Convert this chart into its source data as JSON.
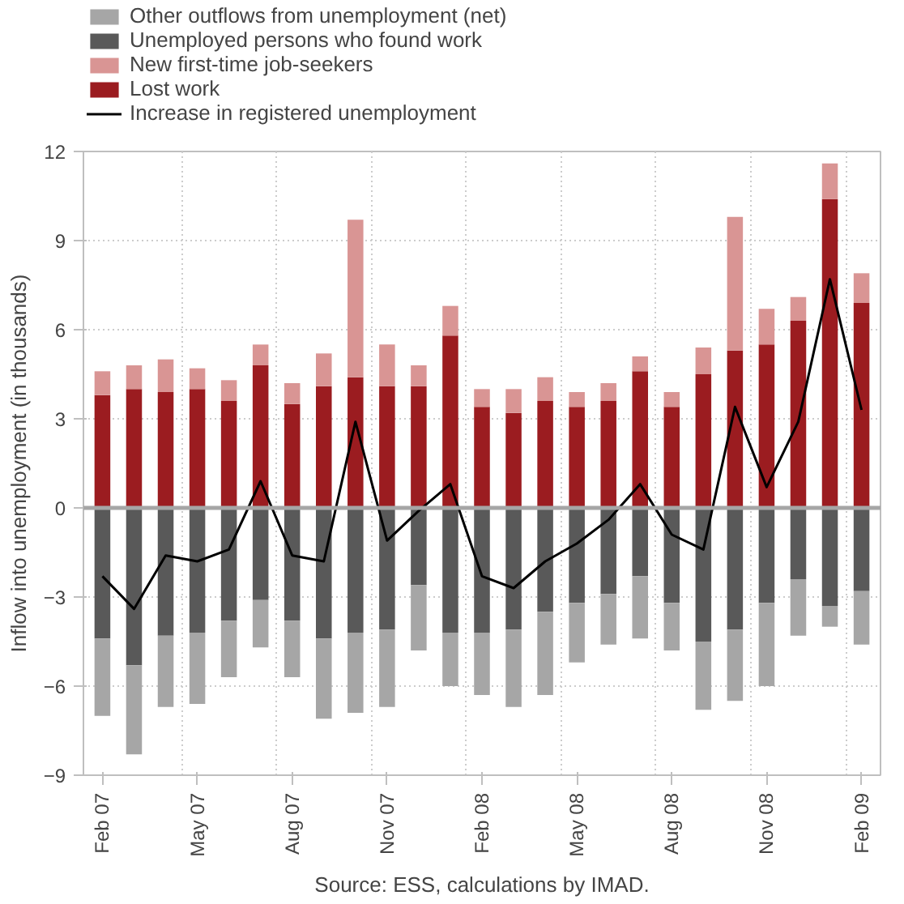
{
  "chart_data": {
    "type": "bar",
    "stacked": true,
    "ylabel": "Inflow into unemployment (in thousands)",
    "annotations": [
      "Source: ESS, calculations by IMAD."
    ],
    "categories": [
      "Feb 07",
      null,
      null,
      "May 07",
      null,
      null,
      "Aug 07",
      null,
      null,
      "Nov 07",
      null,
      null,
      "Feb 08",
      null,
      null,
      "May 08",
      null,
      null,
      "Aug 08",
      null,
      null,
      "Nov 08",
      null,
      null,
      "Feb 09"
    ],
    "series": [
      {
        "name": "Lost work",
        "color": "#9b1c20",
        "values": [
          3.8,
          4.0,
          3.9,
          4.0,
          3.6,
          4.8,
          3.5,
          4.1,
          4.4,
          4.1,
          4.1,
          5.8,
          3.4,
          3.2,
          3.6,
          3.4,
          3.6,
          4.6,
          3.4,
          4.5,
          5.3,
          5.5,
          6.3,
          10.4,
          6.9
        ]
      },
      {
        "name": "New first-time job-seekers",
        "color": "#d99594",
        "values": [
          0.8,
          0.8,
          1.1,
          0.7,
          0.7,
          0.7,
          0.7,
          1.1,
          5.3,
          1.4,
          0.7,
          1.0,
          0.6,
          0.8,
          0.8,
          0.5,
          0.6,
          0.5,
          0.5,
          0.9,
          4.5,
          1.2,
          0.8,
          1.2,
          1.0
        ]
      },
      {
        "name": "Unemployed persons who found work",
        "color": "#595959",
        "values": [
          -4.4,
          -5.3,
          -4.3,
          -4.2,
          -3.8,
          -3.1,
          -3.8,
          -4.4,
          -4.2,
          -4.1,
          -2.6,
          -4.2,
          -4.2,
          -4.1,
          -3.5,
          -3.2,
          -2.9,
          -2.3,
          -3.2,
          -4.5,
          -4.1,
          -3.2,
          -2.4,
          -3.3,
          -2.8
        ]
      },
      {
        "name": "Other outflows from unemployment (net)",
        "color": "#a6a6a6",
        "values": [
          -2.6,
          -3.0,
          -2.4,
          -2.4,
          -1.9,
          -1.6,
          -1.9,
          -2.7,
          -2.7,
          -2.6,
          -2.2,
          -1.8,
          -2.1,
          -2.6,
          -2.8,
          -2.0,
          -1.7,
          -2.1,
          -1.6,
          -2.3,
          -2.4,
          -2.8,
          -1.9,
          -0.7,
          -1.8
        ]
      },
      {
        "name": "Increase in registered unemployment",
        "type": "line",
        "color": "#000000",
        "values": [
          -2.3,
          -3.4,
          -1.6,
          -1.8,
          -1.4,
          0.9,
          -1.6,
          -1.8,
          2.9,
          -1.1,
          -0.1,
          0.8,
          -2.3,
          -2.7,
          -1.8,
          -1.2,
          -0.4,
          0.8,
          -0.9,
          -1.4,
          3.4,
          0.7,
          2.9,
          7.7,
          3.3
        ]
      }
    ],
    "ylim": [
      -9,
      12
    ],
    "yticks": [
      -9,
      -6,
      -3,
      0,
      3,
      6,
      9,
      12
    ],
    "grid": true,
    "legend": "top",
    "ref_lines": [
      {
        "axis": "y",
        "value": 0,
        "color": "#a6a6a6"
      }
    ]
  }
}
